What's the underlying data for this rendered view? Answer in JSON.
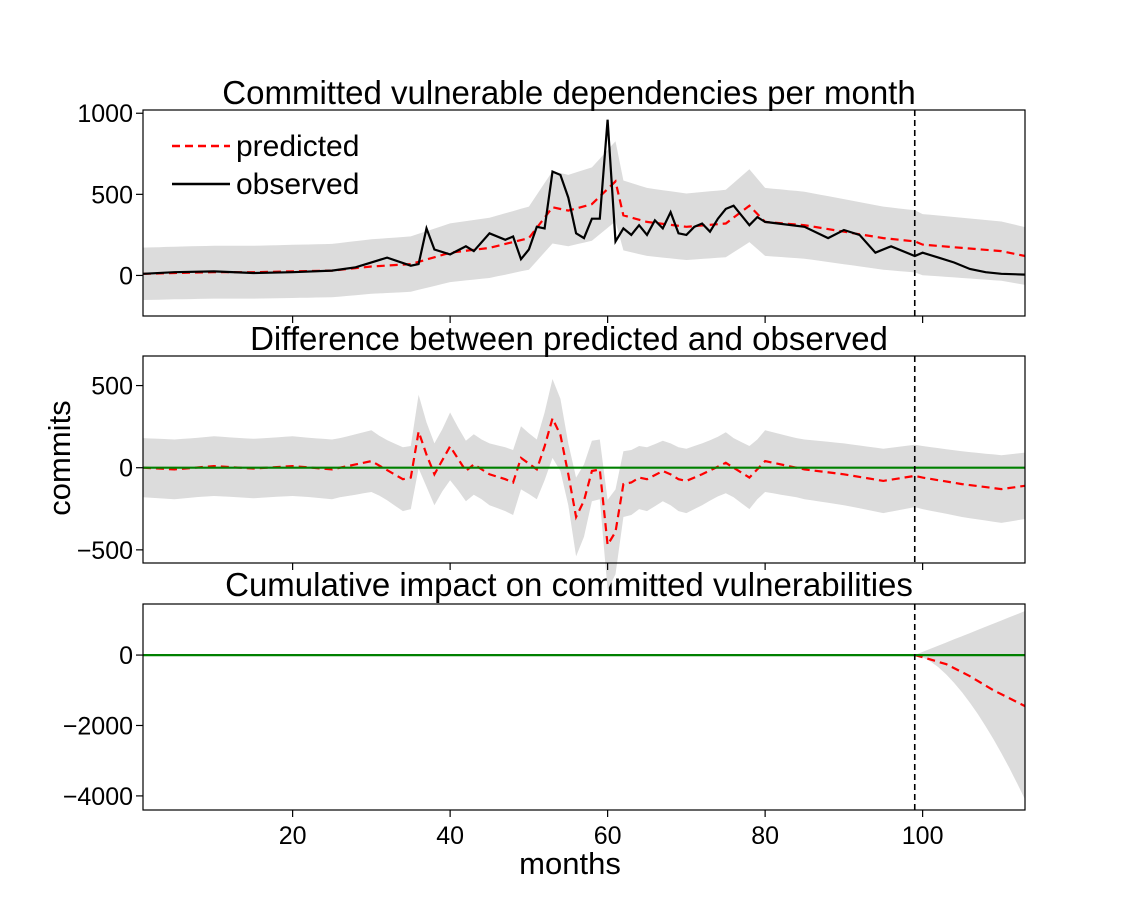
{
  "figure": {
    "ylabel": "commits",
    "xlabel": "months",
    "x_ticks": [
      20,
      40,
      60,
      80,
      100
    ],
    "xlim": [
      1,
      113
    ],
    "intervention_x": 99,
    "legend": [
      "predicted",
      "observed"
    ]
  },
  "chart_data": [
    {
      "type": "line",
      "title": "Committed vulnerable dependencies per month",
      "ylim": [
        -250,
        1020
      ],
      "y_ticks": [
        0,
        500,
        1000
      ],
      "series": [
        {
          "name": "predicted",
          "color": "#ff0000",
          "style": "dashed",
          "x": [
            1,
            5,
            10,
            15,
            20,
            25,
            30,
            35,
            40,
            45,
            50,
            53,
            55,
            58,
            61,
            62,
            65,
            70,
            75,
            78,
            80,
            85,
            90,
            95,
            99,
            100,
            105,
            110,
            113
          ],
          "values": [
            10,
            15,
            20,
            20,
            25,
            30,
            55,
            70,
            140,
            170,
            230,
            420,
            400,
            440,
            580,
            370,
            330,
            300,
            320,
            430,
            330,
            310,
            270,
            230,
            210,
            190,
            170,
            150,
            120
          ]
        },
        {
          "name": "observed",
          "color": "#000000",
          "style": "solid",
          "x": [
            1,
            5,
            10,
            15,
            20,
            25,
            28,
            32,
            35,
            36,
            37,
            38,
            40,
            42,
            43,
            45,
            47,
            48,
            49,
            50,
            51,
            52,
            53,
            54,
            55,
            56,
            57,
            58,
            59,
            60,
            61,
            62,
            63,
            64,
            65,
            66,
            67,
            68,
            69,
            70,
            71,
            72,
            73,
            74,
            75,
            76,
            77,
            78,
            79,
            80,
            85,
            88,
            90,
            92,
            94,
            96,
            99,
            100,
            102,
            104,
            106,
            108,
            110,
            113
          ],
          "values": [
            10,
            20,
            25,
            15,
            20,
            30,
            50,
            110,
            60,
            70,
            290,
            160,
            130,
            180,
            150,
            260,
            220,
            240,
            100,
            160,
            300,
            290,
            640,
            620,
            480,
            260,
            230,
            350,
            350,
            960,
            210,
            290,
            250,
            310,
            250,
            340,
            290,
            390,
            260,
            250,
            300,
            320,
            270,
            350,
            410,
            430,
            370,
            310,
            360,
            330,
            300,
            230,
            280,
            250,
            140,
            180,
            120,
            140,
            110,
            80,
            40,
            20,
            10,
            5
          ]
        }
      ]
    },
    {
      "type": "line",
      "title": "Difference between predicted and observed",
      "ylim": [
        -580,
        680
      ],
      "y_ticks": [
        -500,
        0,
        500
      ],
      "series": [
        {
          "name": "difference",
          "color": "#ff0000",
          "style": "dashed",
          "x": [
            1,
            5,
            10,
            15,
            20,
            25,
            30,
            34,
            35,
            36,
            37,
            38,
            40,
            42,
            43,
            45,
            47,
            48,
            49,
            51,
            52,
            53,
            54,
            55,
            56,
            57,
            58,
            59,
            60,
            61,
            62,
            63,
            64,
            65,
            67,
            68,
            69,
            70,
            72,
            75,
            78,
            80,
            85,
            90,
            95,
            99,
            100,
            105,
            110,
            113
          ],
          "values": [
            0,
            -10,
            10,
            -5,
            10,
            -10,
            40,
            -70,
            -60,
            220,
            80,
            -40,
            130,
            -20,
            20,
            -40,
            -70,
            -90,
            60,
            -10,
            130,
            300,
            200,
            -40,
            -300,
            -200,
            -20,
            -10,
            -470,
            -390,
            -100,
            -90,
            -60,
            -70,
            -20,
            -40,
            -70,
            -80,
            -40,
            30,
            -60,
            40,
            -10,
            -40,
            -80,
            -50,
            -60,
            -100,
            -130,
            -110
          ]
        },
        {
          "name": "zero",
          "color": "#008000",
          "style": "solid",
          "x": [
            1,
            113
          ],
          "values": [
            0,
            0
          ]
        }
      ]
    },
    {
      "type": "line",
      "title": "Cumulative impact on committed vulnerabilities",
      "ylim": [
        -4400,
        1450
      ],
      "y_ticks": [
        0,
        -2000,
        -4000
      ],
      "series": [
        {
          "name": "cumulative",
          "color": "#ff0000",
          "style": "dashed",
          "x": [
            99,
            100,
            103,
            106,
            109,
            113
          ],
          "values": [
            0,
            -60,
            -260,
            -600,
            -1000,
            -1450
          ]
        },
        {
          "name": "zero",
          "color": "#008000",
          "style": "solid",
          "x": [
            1,
            113
          ],
          "values": [
            0,
            0
          ]
        }
      ]
    }
  ]
}
